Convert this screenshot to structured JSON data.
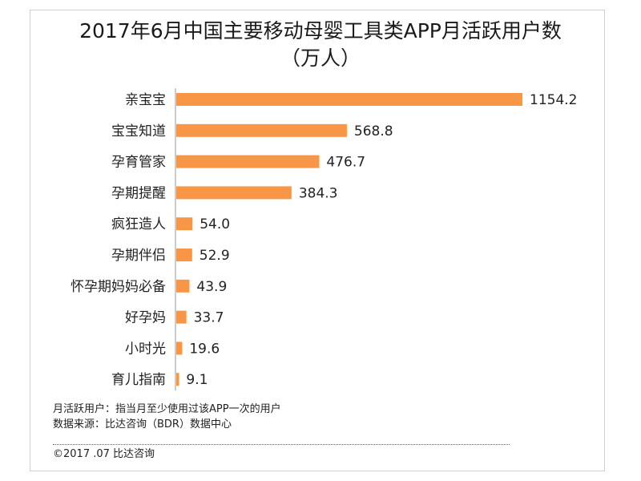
{
  "title_line1": "2017年6月中国主要移动母婴工具类APP月活跃用户数",
  "title_line2": "（万人）",
  "chart_data": {
    "type": "bar",
    "orientation": "horizontal",
    "title": "2017年6月中国主要移动母婴工具类APP月活跃用户数（万人）",
    "categories": [
      "亲宝宝",
      "宝宝知道",
      "孕育管家",
      "孕期提醒",
      "疯狂造人",
      "孕期伴侣",
      "怀孕期妈妈必备",
      "好孕妈",
      "小时光",
      "育儿指南"
    ],
    "values": [
      1154.2,
      568.8,
      476.7,
      384.3,
      54.0,
      52.9,
      43.9,
      33.7,
      19.6,
      9.1
    ],
    "value_labels": [
      "1154.2",
      "568.8",
      "476.7",
      "384.3",
      "54.0",
      "52.9",
      "43.9",
      "33.7",
      "19.6",
      "9.1"
    ],
    "bar_color": "#f79646",
    "xlim": [
      0,
      1154.2
    ],
    "grid": false,
    "legend": false
  },
  "footnotes": {
    "definition": "月活跃用户：指当月至少使用过该APP一次的用户",
    "source": "数据来源：比达咨询（BDR）数据中心",
    "copyright": "©2017 .07  比达咨询"
  }
}
